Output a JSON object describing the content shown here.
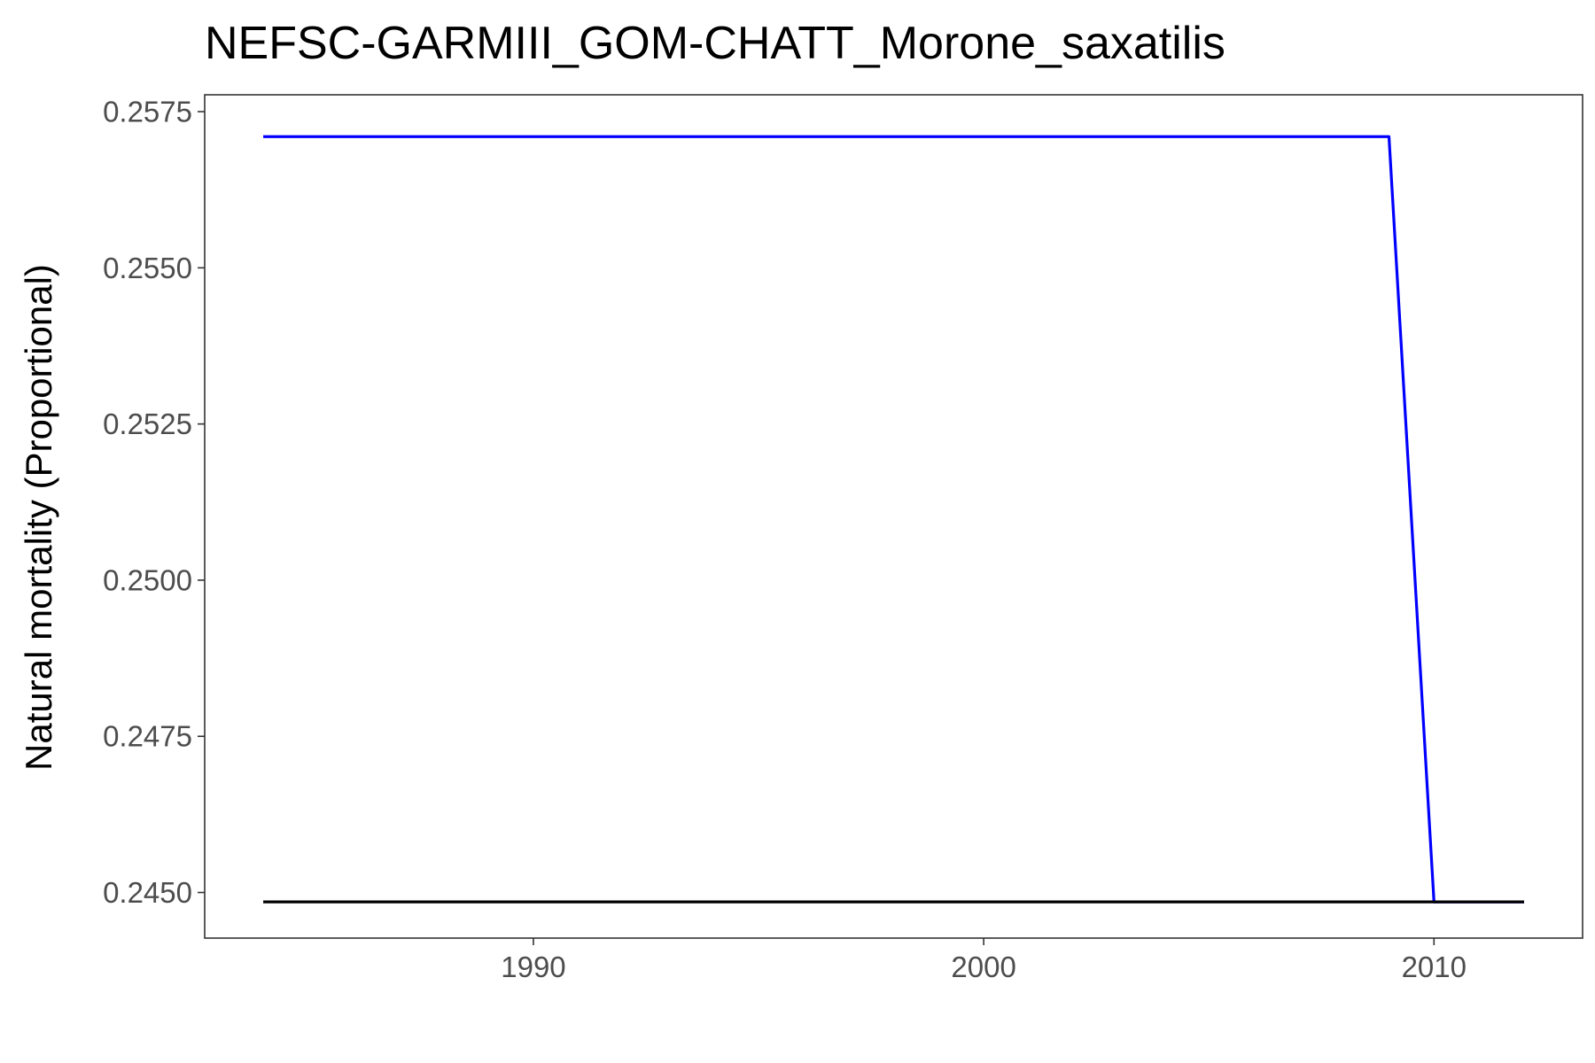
{
  "chart_data": {
    "type": "line",
    "title": "NEFSC-GARMIII_GOM-CHATT_Morone_saxatilis",
    "xlabel": "",
    "ylabel": "Natural mortality (Proportional)",
    "xlim": [
      1982.7,
      2013.3
    ],
    "ylim": [
      0.24427,
      0.25777
    ],
    "x_ticks": [
      {
        "value": 1990,
        "label": "1990"
      },
      {
        "value": 2000,
        "label": "2000"
      },
      {
        "value": 2010,
        "label": "2010"
      }
    ],
    "y_ticks": [
      {
        "value": 0.245,
        "label": "0.2450"
      },
      {
        "value": 0.2475,
        "label": "0.2475"
      },
      {
        "value": 0.25,
        "label": "0.2500"
      },
      {
        "value": 0.2525,
        "label": "0.2525"
      },
      {
        "value": 0.255,
        "label": "0.2550"
      },
      {
        "value": 0.2575,
        "label": "0.2575"
      }
    ],
    "grid": false,
    "legend": "none",
    "series": [
      {
        "color": "#0000ff",
        "x": [
          1984,
          1985,
          1986,
          1987,
          1988,
          1989,
          1990,
          1991,
          1992,
          1993,
          1994,
          1995,
          1996,
          1997,
          1998,
          1999,
          2000,
          2001,
          2002,
          2003,
          2004,
          2005,
          2006,
          2007,
          2008,
          2009,
          2010,
          2011,
          2012
        ],
        "y": [
          0.2571,
          0.2571,
          0.2571,
          0.2571,
          0.2571,
          0.2571,
          0.2571,
          0.2571,
          0.2571,
          0.2571,
          0.2571,
          0.2571,
          0.2571,
          0.2571,
          0.2571,
          0.2571,
          0.2571,
          0.2571,
          0.2571,
          0.2571,
          0.2571,
          0.2571,
          0.2571,
          0.2571,
          0.2571,
          0.2571,
          0.24485,
          0.24485,
          0.24485
        ]
      },
      {
        "color": "#000000",
        "x": [
          1984,
          1985,
          1986,
          1987,
          1988,
          1989,
          1990,
          1991,
          1992,
          1993,
          1994,
          1995,
          1996,
          1997,
          1998,
          1999,
          2000,
          2001,
          2002,
          2003,
          2004,
          2005,
          2006,
          2007,
          2008,
          2009,
          2010,
          2011,
          2012
        ],
        "y": [
          0.24485,
          0.24485,
          0.24485,
          0.24485,
          0.24485,
          0.24485,
          0.24485,
          0.24485,
          0.24485,
          0.24485,
          0.24485,
          0.24485,
          0.24485,
          0.24485,
          0.24485,
          0.24485,
          0.24485,
          0.24485,
          0.24485,
          0.24485,
          0.24485,
          0.24485,
          0.24485,
          0.24485,
          0.24485,
          0.24485,
          0.24485,
          0.24485,
          0.24485
        ]
      }
    ]
  }
}
